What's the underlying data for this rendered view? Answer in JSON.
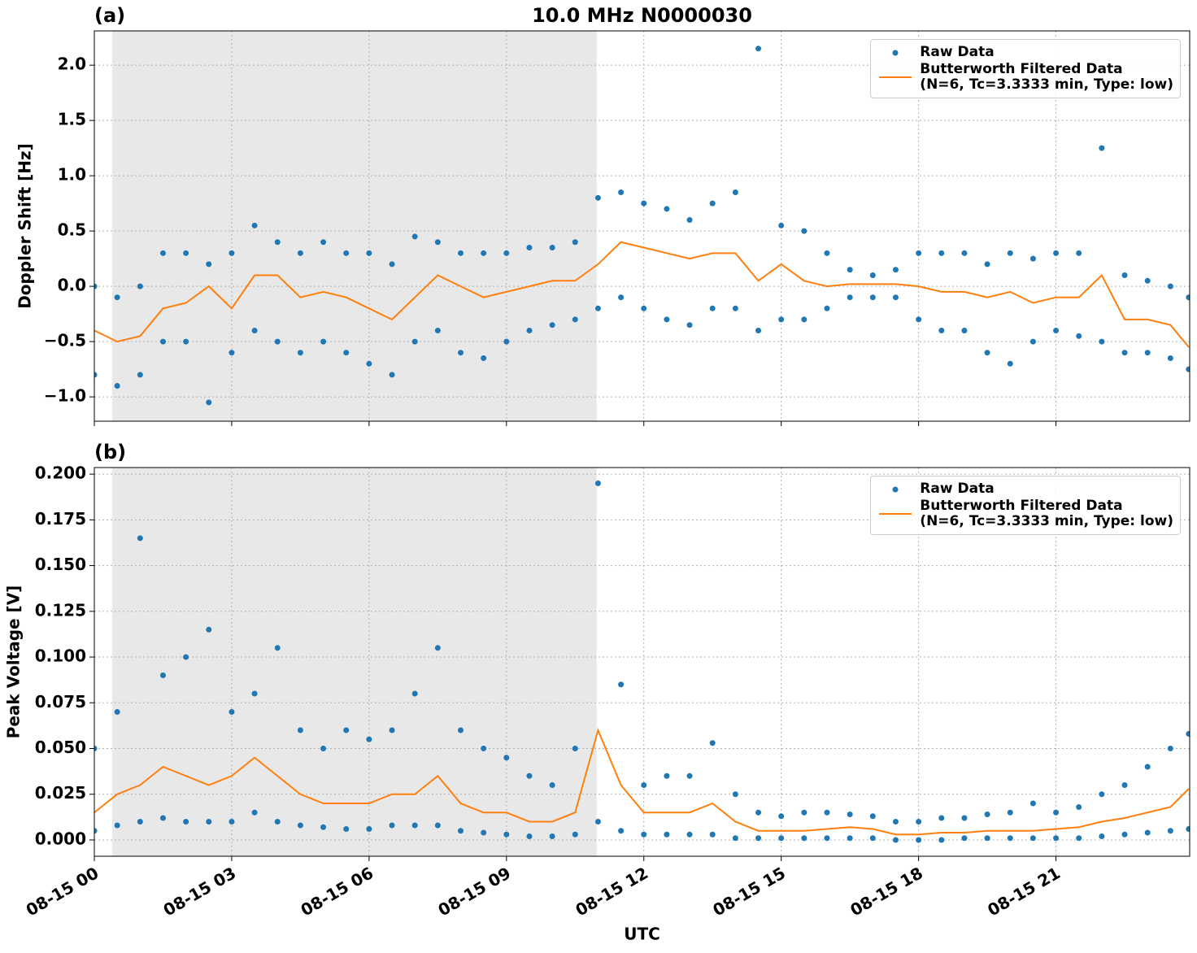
{
  "chart_data": [
    {
      "type": "line",
      "panel_label": "(a)",
      "title": "10.0 MHz N0000030",
      "ylabel": "Doppler Shift [Hz]",
      "xlim": [
        0,
        23.92
      ],
      "xticks": [
        0,
        3,
        6,
        9,
        12,
        15,
        18,
        21
      ],
      "ylim": [
        -1.22,
        2.31
      ],
      "yticks": [
        {
          "value": -1,
          "label": "−1.0"
        },
        {
          "value": -0.5,
          "label": "−0.5"
        },
        {
          "value": 0,
          "label": "0.0"
        },
        0.5,
        {
          "value": 1,
          "label": "1.0"
        },
        1.5,
        {
          "value": 2,
          "label": "2.0"
        }
      ],
      "grid": true,
      "shaded_span": [
        0.39,
        10.97
      ],
      "shade_color": "#e8e8e8",
      "legend": "upper right",
      "series": [
        {
          "name": "Raw Data",
          "color": "#1f77b4",
          "marker": "o",
          "x": [
            0,
            0,
            0.5,
            0.5,
            1,
            1,
            1.5,
            1.5,
            2,
            2,
            2.5,
            2.5,
            3,
            3,
            3.5,
            3.5,
            4,
            4,
            4.5,
            4.5,
            5,
            5,
            5.5,
            5.5,
            6,
            6,
            6.5,
            6.5,
            7,
            7,
            7.5,
            7.5,
            8,
            8,
            8.5,
            8.5,
            9,
            9,
            9.5,
            9.5,
            10,
            10,
            10.5,
            10.5,
            11,
            11,
            11.5,
            11.5,
            12,
            12,
            12.5,
            12.5,
            13,
            13,
            13.5,
            13.5,
            14,
            14,
            14.5,
            14.5,
            15,
            15,
            15.5,
            15.5,
            16,
            16,
            16.5,
            16.5,
            17,
            17,
            17.5,
            17.5,
            18,
            18,
            18.5,
            18.5,
            19,
            19,
            19.5,
            19.5,
            20,
            20,
            20.5,
            20.5,
            21,
            21,
            21.5,
            21.5,
            22,
            22,
            22.5,
            22.5,
            23,
            23,
            23.5,
            23.5,
            23.9,
            23.9
          ],
          "values": [
            0.0,
            -0.8,
            -0.1,
            -0.9,
            0.0,
            -0.8,
            0.3,
            -0.5,
            0.3,
            -0.5,
            0.2,
            -1.05,
            0.3,
            -0.6,
            0.55,
            -0.4,
            0.4,
            -0.5,
            0.3,
            -0.6,
            0.4,
            -0.5,
            0.3,
            -0.6,
            0.3,
            -0.7,
            0.2,
            -0.8,
            0.45,
            -0.5,
            0.4,
            -0.4,
            0.3,
            -0.6,
            0.3,
            -0.65,
            0.3,
            -0.5,
            0.35,
            -0.4,
            0.35,
            -0.35,
            0.4,
            -0.3,
            0.8,
            -0.2,
            0.85,
            -0.1,
            0.75,
            -0.2,
            0.7,
            -0.3,
            0.6,
            -0.35,
            0.75,
            -0.2,
            0.85,
            -0.2,
            2.15,
            -0.4,
            0.55,
            -0.3,
            0.5,
            -0.3,
            0.3,
            -0.2,
            0.15,
            -0.1,
            0.1,
            -0.1,
            0.15,
            -0.1,
            0.3,
            -0.3,
            0.3,
            -0.4,
            0.3,
            -0.4,
            0.2,
            -0.6,
            0.3,
            -0.7,
            0.25,
            -0.5,
            0.3,
            -0.4,
            0.3,
            -0.45,
            1.25,
            -0.5,
            0.1,
            -0.6,
            0.05,
            -0.6,
            0.0,
            -0.65,
            -0.1,
            -0.75
          ]
        },
        {
          "name": "Butterworth Filtered Data\n(N=6, Tc=3.3333 min, Type: low)",
          "color": "#ff7f0e",
          "x": [
            0,
            0.5,
            1,
            1.5,
            2,
            2.5,
            3,
            3.5,
            4,
            4.5,
            5,
            5.5,
            6,
            6.5,
            7,
            7.5,
            8,
            8.5,
            9,
            9.5,
            10,
            10.5,
            11,
            11.5,
            12,
            12.5,
            13,
            13.5,
            14,
            14.5,
            15,
            15.5,
            16,
            16.5,
            17,
            17.5,
            18,
            18.5,
            19,
            19.5,
            20,
            20.5,
            21,
            21.5,
            22,
            22.5,
            23,
            23.5,
            23.9
          ],
          "values": [
            -0.4,
            -0.5,
            -0.45,
            -0.2,
            -0.15,
            0.0,
            -0.2,
            0.1,
            0.1,
            -0.1,
            -0.05,
            -0.1,
            -0.2,
            -0.3,
            -0.1,
            0.1,
            0.0,
            -0.1,
            -0.05,
            0.0,
            0.05,
            0.05,
            0.2,
            0.4,
            0.35,
            0.3,
            0.25,
            0.3,
            0.3,
            0.05,
            0.2,
            0.05,
            0.0,
            0.02,
            0.02,
            0.02,
            0.0,
            -0.05,
            -0.05,
            -0.1,
            -0.05,
            -0.15,
            -0.1,
            -0.1,
            0.1,
            -0.3,
            -0.3,
            -0.35,
            -0.55
          ]
        }
      ]
    },
    {
      "type": "line",
      "panel_label": "(b)",
      "ylabel": "Peak Voltage [V]",
      "xlabel": "UTC",
      "xlim": [
        0,
        23.92
      ],
      "xticks": [
        {
          "value": 0,
          "label": "08-15 00"
        },
        {
          "value": 3,
          "label": "08-15 03"
        },
        {
          "value": 6,
          "label": "08-15 06"
        },
        {
          "value": 9,
          "label": "08-15 09"
        },
        {
          "value": 12,
          "label": "08-15 12"
        },
        {
          "value": 15,
          "label": "08-15 15"
        },
        {
          "value": 18,
          "label": "08-15 18"
        },
        {
          "value": 21,
          "label": "08-15 21"
        }
      ],
      "ylim": [
        -0.0089,
        0.2036
      ],
      "yticks": [
        {
          "value": 0,
          "label": "0.000"
        },
        {
          "value": 0.025,
          "label": "0.025"
        },
        {
          "value": 0.05,
          "label": "0.050"
        },
        {
          "value": 0.075,
          "label": "0.075"
        },
        {
          "value": 0.1,
          "label": "0.100"
        },
        {
          "value": 0.125,
          "label": "0.125"
        },
        {
          "value": 0.15,
          "label": "0.150"
        },
        {
          "value": 0.175,
          "label": "0.175"
        },
        {
          "value": 0.2,
          "label": "0.200"
        }
      ],
      "grid": true,
      "shaded_span": [
        0.39,
        10.97
      ],
      "shade_color": "#e8e8e8",
      "legend": "upper right",
      "series": [
        {
          "name": "Raw Data",
          "color": "#1f77b4",
          "marker": "o",
          "x": [
            0,
            0,
            0.5,
            0.5,
            1,
            1,
            1.5,
            1.5,
            2,
            2,
            2.5,
            2.5,
            3,
            3,
            3.5,
            3.5,
            4,
            4,
            4.5,
            4.5,
            5,
            5,
            5.5,
            5.5,
            6,
            6,
            6.5,
            6.5,
            7,
            7,
            7.5,
            7.5,
            8,
            8,
            8.5,
            8.5,
            9,
            9,
            9.5,
            9.5,
            10,
            10,
            10.5,
            10.5,
            11,
            11,
            11.5,
            11.5,
            12,
            12,
            12.5,
            12.5,
            13,
            13,
            13.5,
            13.5,
            14,
            14,
            14.5,
            14.5,
            15,
            15,
            15.5,
            15.5,
            16,
            16,
            16.5,
            16.5,
            17,
            17,
            17.5,
            17.5,
            18,
            18,
            18.5,
            18.5,
            19,
            19,
            19.5,
            19.5,
            20,
            20,
            20.5,
            20.5,
            21,
            21,
            21.5,
            21.5,
            22,
            22,
            22.5,
            22.5,
            23,
            23,
            23.5,
            23.5,
            23.9,
            23.9
          ],
          "values": [
            0.05,
            0.005,
            0.07,
            0.008,
            0.165,
            0.01,
            0.09,
            0.012,
            0.1,
            0.01,
            0.115,
            0.01,
            0.07,
            0.01,
            0.08,
            0.015,
            0.105,
            0.01,
            0.06,
            0.008,
            0.05,
            0.007,
            0.06,
            0.006,
            0.055,
            0.006,
            0.06,
            0.008,
            0.08,
            0.008,
            0.105,
            0.008,
            0.06,
            0.005,
            0.05,
            0.004,
            0.045,
            0.003,
            0.035,
            0.002,
            0.03,
            0.002,
            0.05,
            0.003,
            0.195,
            0.01,
            0.085,
            0.005,
            0.03,
            0.003,
            0.035,
            0.003,
            0.035,
            0.003,
            0.053,
            0.003,
            0.025,
            0.001,
            0.015,
            0.001,
            0.013,
            0.001,
            0.015,
            0.001,
            0.015,
            0.001,
            0.014,
            0.001,
            0.013,
            0.001,
            0.01,
            0.0,
            0.01,
            0.0,
            0.012,
            0.0,
            0.012,
            0.001,
            0.014,
            0.001,
            0.015,
            0.001,
            0.02,
            0.001,
            0.015,
            0.001,
            0.018,
            0.001,
            0.025,
            0.002,
            0.03,
            0.003,
            0.04,
            0.004,
            0.05,
            0.005,
            0.058,
            0.006
          ]
        },
        {
          "name": "Butterworth Filtered Data\n(N=6, Tc=3.3333 min, Type: low)",
          "color": "#ff7f0e",
          "x": [
            0,
            0.5,
            1,
            1.5,
            2,
            2.5,
            3,
            3.5,
            4,
            4.5,
            5,
            5.5,
            6,
            6.5,
            7,
            7.5,
            8,
            8.5,
            9,
            9.5,
            10,
            10.5,
            11,
            11.5,
            12,
            12.5,
            13,
            13.5,
            14,
            14.5,
            15,
            15.5,
            16,
            16.5,
            17,
            17.5,
            18,
            18.5,
            19,
            19.5,
            20,
            20.5,
            21,
            21.5,
            22,
            22.5,
            23,
            23.5,
            23.9
          ],
          "values": [
            0.015,
            0.025,
            0.03,
            0.04,
            0.035,
            0.03,
            0.035,
            0.045,
            0.035,
            0.025,
            0.02,
            0.02,
            0.02,
            0.025,
            0.025,
            0.035,
            0.02,
            0.015,
            0.015,
            0.01,
            0.01,
            0.015,
            0.06,
            0.03,
            0.015,
            0.015,
            0.015,
            0.02,
            0.01,
            0.005,
            0.005,
            0.005,
            0.006,
            0.007,
            0.006,
            0.003,
            0.003,
            0.004,
            0.004,
            0.005,
            0.005,
            0.005,
            0.006,
            0.007,
            0.01,
            0.012,
            0.015,
            0.018,
            0.028
          ]
        }
      ]
    }
  ]
}
